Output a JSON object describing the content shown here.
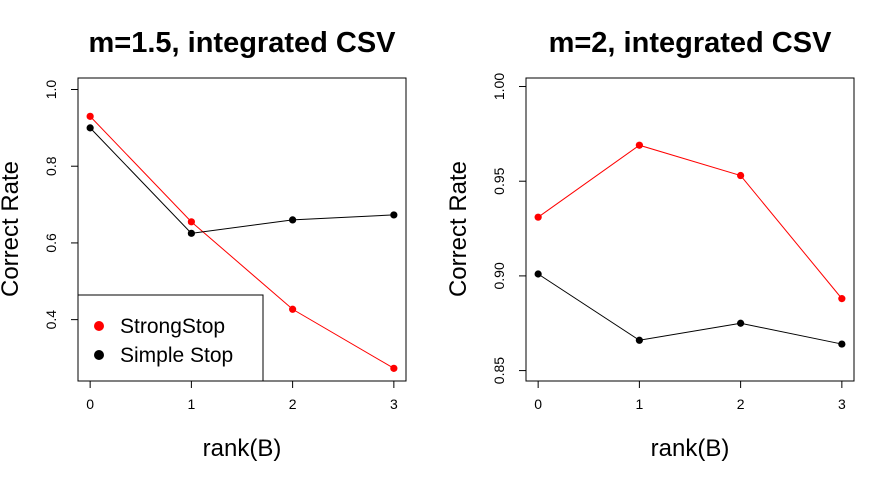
{
  "chart_data": [
    {
      "type": "line",
      "title": "m=1.5, integrated CSV",
      "xlabel": "rank(B)",
      "ylabel": "Correct Rate",
      "x": [
        0,
        1,
        2,
        3
      ],
      "xlim": [
        -0.12,
        3.12
      ],
      "ylim": [
        0.24,
        1.03
      ],
      "xticks": [
        "0",
        "1",
        "2",
        "3"
      ],
      "yticks": [
        {
          "value": 0.4,
          "label": "0.4"
        },
        {
          "value": 0.6,
          "label": "0.6"
        },
        {
          "value": 0.8,
          "label": "0.8"
        },
        {
          "value": 1.0,
          "label": "1.0"
        }
      ],
      "series": [
        {
          "name": "StrongStop",
          "color": "#ff0000",
          "values": [
            0.93,
            0.655,
            0.427,
            0.273
          ]
        },
        {
          "name": "Simple Stop",
          "color": "#000000",
          "values": [
            0.9,
            0.625,
            0.66,
            0.673
          ]
        }
      ],
      "legend": {
        "position": "bottom-left",
        "entries": [
          "StrongStop",
          "Simple Stop"
        ]
      }
    },
    {
      "type": "line",
      "title": "m=2, integrated CSV",
      "xlabel": "rank(B)",
      "ylabel": "Correct Rate",
      "x": [
        0,
        1,
        2,
        3
      ],
      "xlim": [
        -0.12,
        3.12
      ],
      "ylim": [
        0.8445,
        1.0045
      ],
      "xticks": [
        "0",
        "1",
        "2",
        "3"
      ],
      "yticks": [
        {
          "value": 0.85,
          "label": "0.85"
        },
        {
          "value": 0.9,
          "label": "0.90"
        },
        {
          "value": 0.95,
          "label": "0.95"
        },
        {
          "value": 1.0,
          "label": "1.00"
        }
      ],
      "series": [
        {
          "name": "StrongStop",
          "color": "#ff0000",
          "values": [
            0.931,
            0.969,
            0.953,
            0.888
          ]
        },
        {
          "name": "Simple Stop",
          "color": "#000000",
          "values": [
            0.901,
            0.866,
            0.875,
            0.864
          ]
        }
      ]
    }
  ]
}
